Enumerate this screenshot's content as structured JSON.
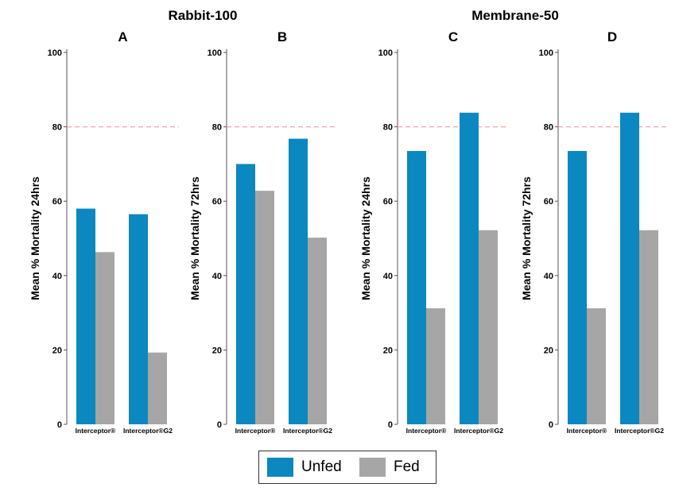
{
  "colors": {
    "unfed": "#0a88bf",
    "fed": "#a6a6a6",
    "reference": "#f4a3a3"
  },
  "groups": [
    "Rabbit-100",
    "Membrane-50"
  ],
  "legend": {
    "items": [
      "Unfed",
      "Fed"
    ]
  },
  "chart_data": [
    {
      "type": "bar",
      "title": "A",
      "group": "Rabbit-100",
      "ylabel": "Mean % Mortality 24hrs",
      "ylim": [
        0,
        100
      ],
      "yticks": [
        0,
        20,
        40,
        60,
        80,
        100
      ],
      "reference_line": 80,
      "categories": [
        "Interceptor®",
        "Interceptor®G2"
      ],
      "series": [
        {
          "name": "Unfed",
          "values": [
            58,
            56.5
          ]
        },
        {
          "name": "Fed",
          "values": [
            46.3,
            19.3
          ]
        }
      ]
    },
    {
      "type": "bar",
      "title": "B",
      "group": "Rabbit-100",
      "ylabel": "Mean % Mortality 72hrs",
      "ylim": [
        0,
        100
      ],
      "yticks": [
        0,
        20,
        40,
        60,
        80,
        100
      ],
      "reference_line": 80,
      "categories": [
        "Interceptor®",
        "Interceptor®G2"
      ],
      "series": [
        {
          "name": "Unfed",
          "values": [
            70,
            76.8
          ]
        },
        {
          "name": "Fed",
          "values": [
            62.8,
            50.2
          ]
        }
      ]
    },
    {
      "type": "bar",
      "title": "C",
      "group": "Membrane-50",
      "ylabel": "Mean % Mortality 24hrs",
      "ylim": [
        0,
        100
      ],
      "yticks": [
        0,
        20,
        40,
        60,
        80,
        100
      ],
      "reference_line": 80,
      "categories": [
        "Interceptor®",
        "Interceptor®G2"
      ],
      "series": [
        {
          "name": "Unfed",
          "values": [
            73.5,
            83.8
          ]
        },
        {
          "name": "Fed",
          "values": [
            31.2,
            52.2
          ]
        }
      ]
    },
    {
      "type": "bar",
      "title": "D",
      "group": "Membrane-50",
      "ylabel": "Mean % Mortality 72hrs",
      "ylim": [
        0,
        100
      ],
      "yticks": [
        0,
        20,
        40,
        60,
        80,
        100
      ],
      "reference_line": 80,
      "categories": [
        "Interceptor®",
        "Interceptor®G2"
      ],
      "series": [
        {
          "name": "Unfed",
          "values": [
            73.5,
            83.8
          ]
        },
        {
          "name": "Fed",
          "values": [
            31.2,
            52.2
          ]
        }
      ]
    }
  ]
}
